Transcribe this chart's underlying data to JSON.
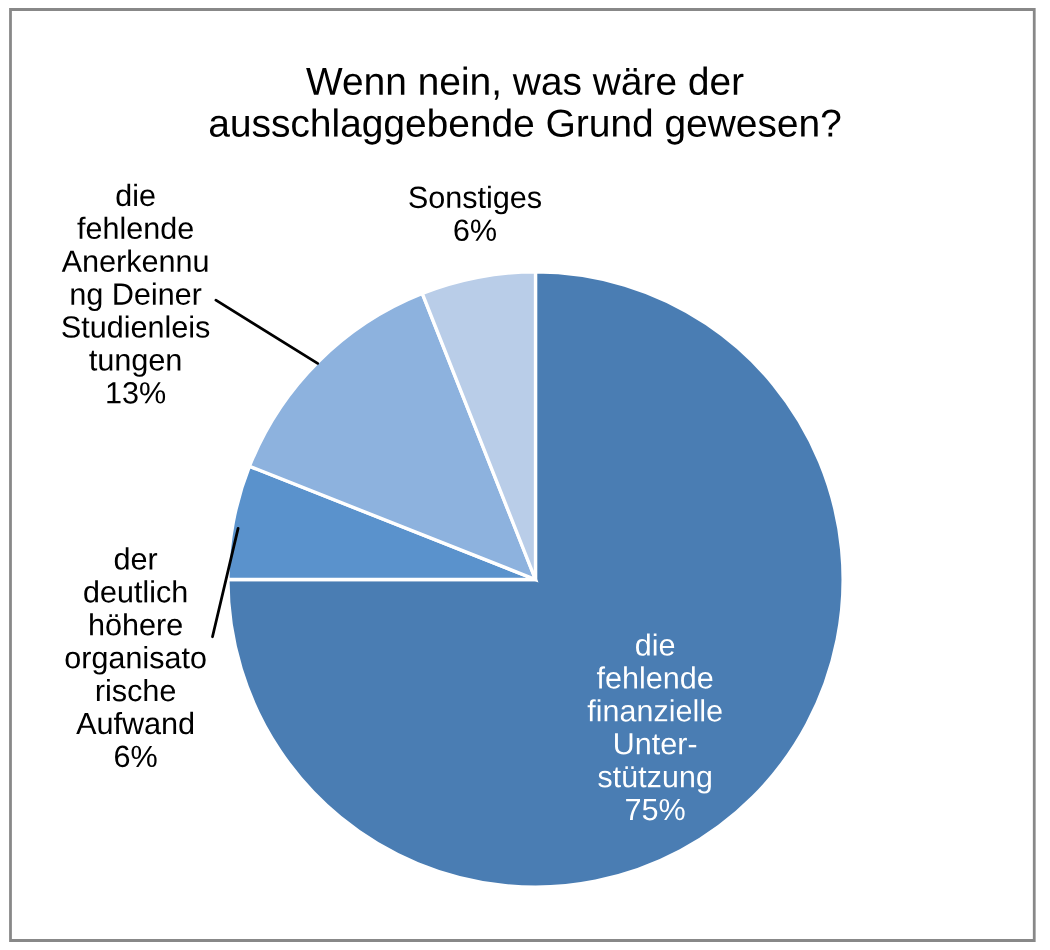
{
  "chart_data": {
    "type": "pie",
    "title": "Wenn nein, was wäre der\nausschlaggebende Grund gewesen?",
    "categories": [
      "die\nfehlende\nfinanzielle\nUnter-\nstützung",
      "der\ndeutlich\nhöhere\norganisato\nrische\nAufwand",
      "die\nfehlende\nAnerkennu\nng Deiner\nStudienleis\ntungen",
      "Sonstiges"
    ],
    "values": [
      75,
      6,
      13,
      6
    ],
    "value_labels": [
      "75%",
      "6%",
      "13%",
      "6%"
    ],
    "colors": [
      "#4a7db3",
      "#5a92cc",
      "#8db2de",
      "#b9cde8"
    ],
    "legend": false
  }
}
